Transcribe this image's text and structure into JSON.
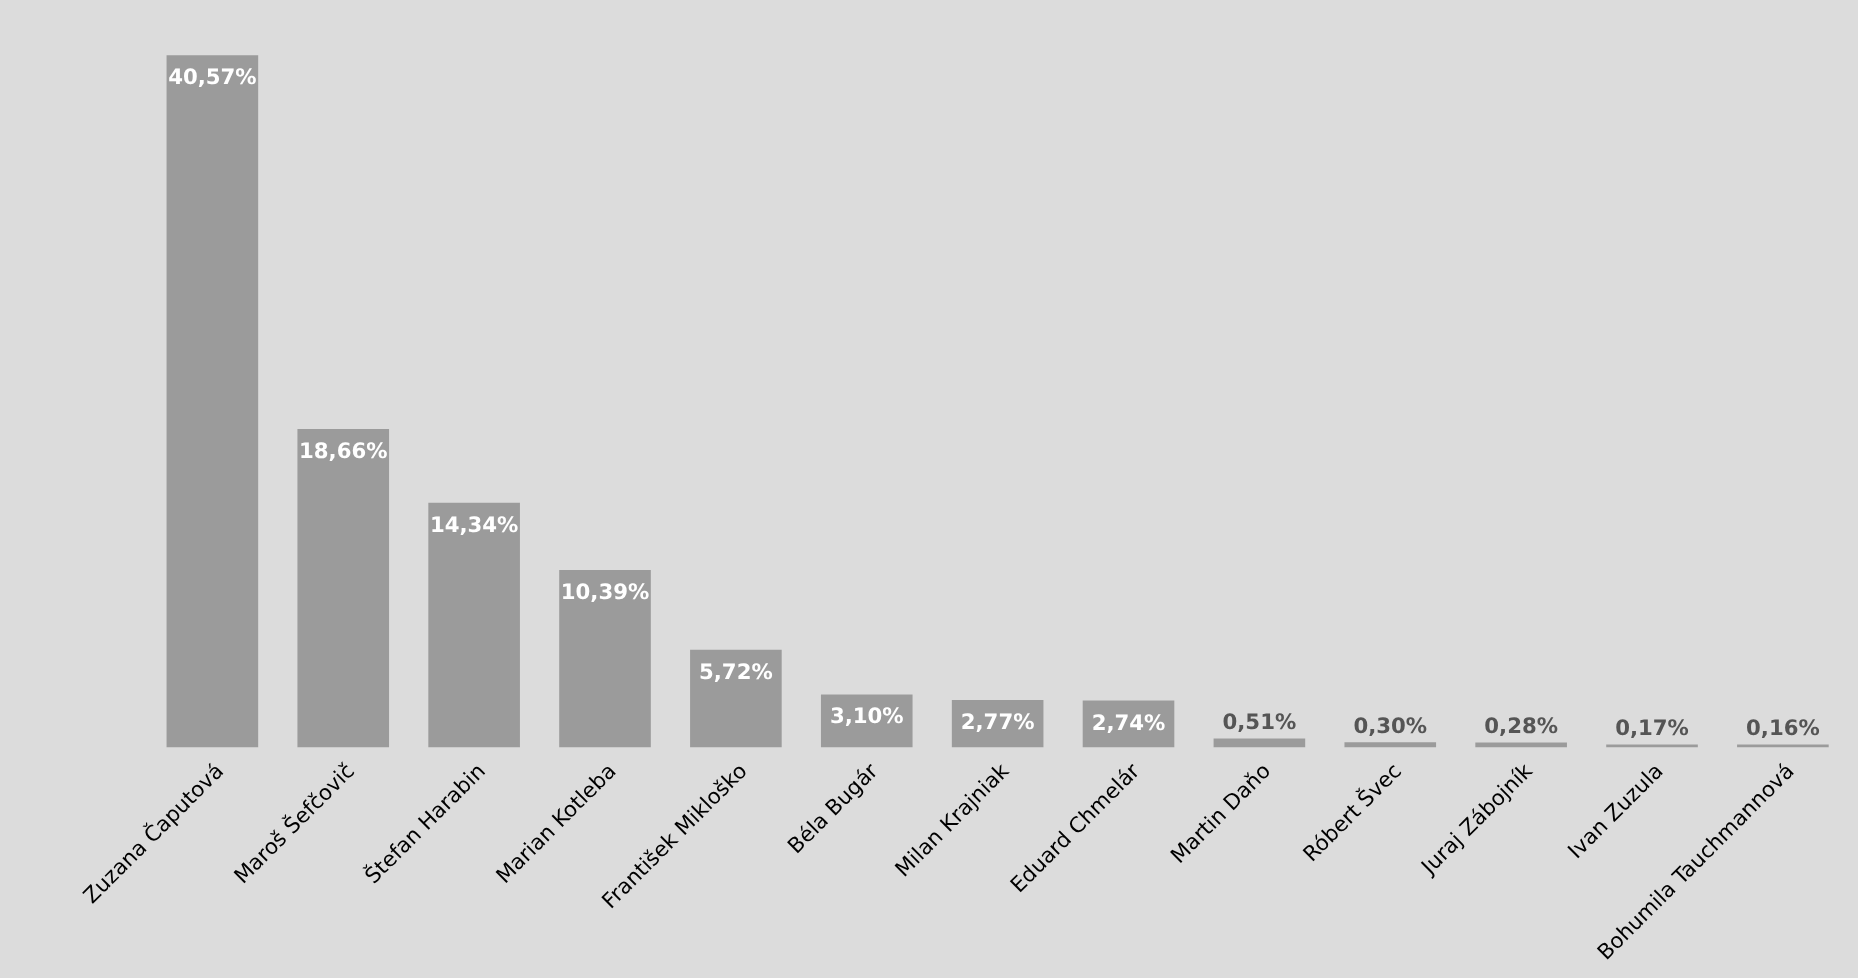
{
  "chart_data": {
    "type": "bar",
    "categories": [
      "Zuzana Čaputová",
      "Maroš Šefčovič",
      "Štefan Harabin",
      "Marian Kotleba",
      "František Mikloško",
      "Béla Bugár",
      "Milan Krajniak",
      "Eduard Chmelár",
      "Martin Daňo",
      "Róbert Švec",
      "Juraj Zábojník",
      "Ivan Zuzula",
      "Bohumila Tauchmannová"
    ],
    "values": [
      40.57,
      18.66,
      14.34,
      10.39,
      5.72,
      3.1,
      2.77,
      2.74,
      0.51,
      0.3,
      0.28,
      0.17,
      0.16
    ],
    "value_labels": [
      "40,57%",
      "18,66%",
      "14,34%",
      "10,39%",
      "5,72%",
      "3,10%",
      "2,77%",
      "2,74%",
      "0,51%",
      "0,30%",
      "0,28%",
      "0,17%",
      "0,16%"
    ],
    "color": "#9b9b9b"
  }
}
